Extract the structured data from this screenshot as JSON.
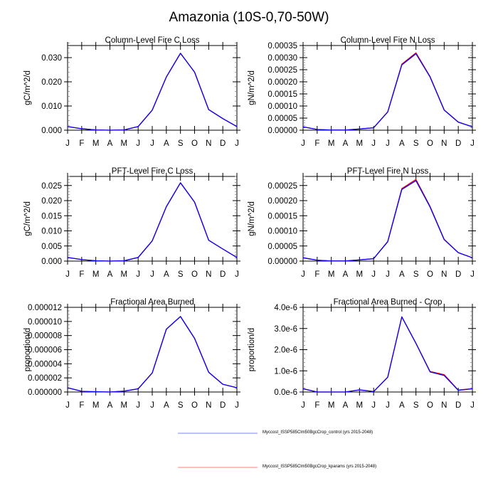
{
  "figure_title": "Amazonia (10S-0,70-50W)",
  "colors": {
    "control": "#0000ff",
    "kparams": "#ff0000",
    "axis": "#000000",
    "minor_tick": "#888888"
  },
  "legend": [
    {
      "label": "Myccost_ISSP585Clm50BgcCrop_control (yrs 2015-2048)",
      "color": "#7f7fff",
      "series": "control"
    },
    {
      "label": "Myccost_ISSP585Clm50BgcCrop_kparams (yrs 2015-2048)",
      "color": "#ff7f7f",
      "series": "kparams"
    }
  ],
  "chart_data": [
    {
      "type": "line",
      "title": "Column-Level Fire C Loss",
      "xlabel": "",
      "ylabel": "gC/m^2/d",
      "categories": [
        "J",
        "F",
        "M",
        "A",
        "M",
        "J",
        "J",
        "A",
        "S",
        "O",
        "N",
        "D",
        "J"
      ],
      "ylim": [
        0,
        0.035
      ],
      "yticks": [
        0,
        0.01,
        0.02,
        0.03
      ],
      "ytick_labels": [
        "0.000",
        "0.010",
        "0.020",
        "0.030"
      ],
      "yminor": 0.002,
      "series": [
        {
          "name": "control",
          "values": [
            0.0015,
            0.0006,
            0.0001,
            0.0,
            0.0001,
            0.0015,
            0.0083,
            0.022,
            0.0318,
            0.024,
            0.0085,
            0.0048,
            0.0015
          ]
        },
        {
          "name": "kparams",
          "values": [
            0.0015,
            0.0006,
            0.0001,
            0.0,
            0.0001,
            0.0015,
            0.0083,
            0.022,
            0.0318,
            0.024,
            0.0085,
            0.0048,
            0.0015
          ]
        }
      ]
    },
    {
      "type": "line",
      "title": "Column-Level Fire N Loss",
      "xlabel": "",
      "ylabel": "gN/m^2/d",
      "categories": [
        "J",
        "F",
        "M",
        "A",
        "M",
        "J",
        "J",
        "A",
        "S",
        "O",
        "N",
        "D",
        "J"
      ],
      "ylim": [
        0,
        0.00035
      ],
      "yticks": [
        0,
        5e-05,
        0.0001,
        0.00015,
        0.0002,
        0.00025,
        0.0003,
        0.00035
      ],
      "ytick_labels": [
        "0.00000",
        "0.00005",
        "0.00010",
        "0.00015",
        "0.00020",
        "0.00025",
        "0.00030",
        "0.00035"
      ],
      "yminor": 1e-05,
      "series": [
        {
          "name": "control",
          "values": [
            1.4e-05,
            3e-06,
            5e-07,
            5e-07,
            5e-06,
            1e-05,
            7.5e-05,
            0.00027,
            0.000316,
            0.00022,
            8.3e-05,
            3.3e-05,
            1.4e-05
          ]
        },
        {
          "name": "kparams",
          "values": [
            1.4e-05,
            3e-06,
            5e-07,
            5e-07,
            5e-06,
            1e-05,
            7.6e-05,
            0.000273,
            0.00032,
            0.000222,
            8.4e-05,
            3.4e-05,
            1.4e-05
          ]
        }
      ]
    },
    {
      "type": "line",
      "title": "PFT-Level Fire C Loss",
      "xlabel": "",
      "ylabel": "gC/m^2/d",
      "categories": [
        "J",
        "F",
        "M",
        "A",
        "M",
        "J",
        "J",
        "A",
        "S",
        "O",
        "N",
        "D",
        "J"
      ],
      "ylim": [
        0,
        0.028
      ],
      "yticks": [
        0,
        0.005,
        0.01,
        0.015,
        0.02,
        0.025
      ],
      "ytick_labels": [
        "0.000",
        "0.005",
        "0.010",
        "0.015",
        "0.020",
        "0.025"
      ],
      "yminor": 0.001,
      "series": [
        {
          "name": "control",
          "values": [
            0.0012,
            0.0005,
            0.0001,
            0.0,
            0.0001,
            0.0012,
            0.0067,
            0.018,
            0.0259,
            0.0195,
            0.0069,
            0.004,
            0.0012
          ]
        },
        {
          "name": "kparams",
          "values": [
            0.0012,
            0.0005,
            0.0001,
            0.0,
            0.0001,
            0.0012,
            0.0067,
            0.018,
            0.0259,
            0.0195,
            0.0069,
            0.004,
            0.0012
          ]
        }
      ]
    },
    {
      "type": "line",
      "title": "PFT-Level Fire N Loss",
      "xlabel": "",
      "ylabel": "gN/m^2/d",
      "categories": [
        "J",
        "F",
        "M",
        "A",
        "M",
        "J",
        "J",
        "A",
        "S",
        "O",
        "N",
        "D",
        "J"
      ],
      "ylim": [
        0,
        0.00028
      ],
      "yticks": [
        0,
        5e-05,
        0.0001,
        0.00015,
        0.0002,
        0.00025
      ],
      "ytick_labels": [
        "0.00000",
        "0.00005",
        "0.00010",
        "0.00015",
        "0.00020",
        "0.00025"
      ],
      "yminor": 1e-05,
      "series": [
        {
          "name": "control",
          "values": [
            1.1e-05,
            3e-06,
            5e-07,
            5e-07,
            4e-06,
            8e-06,
            6.4e-05,
            0.000237,
            0.000266,
            0.000179,
            7.1e-05,
            2.8e-05,
            1.1e-05
          ]
        },
        {
          "name": "kparams",
          "values": [
            1.1e-05,
            3e-06,
            5e-07,
            5e-07,
            4e-06,
            8e-06,
            6.5e-05,
            0.00024,
            0.00027,
            0.000181,
            7.2e-05,
            2.8e-05,
            1.1e-05
          ]
        }
      ]
    },
    {
      "type": "line",
      "title": "Fractional Area Burned",
      "xlabel": "",
      "ylabel": "proportion/d",
      "categories": [
        "J",
        "F",
        "M",
        "A",
        "M",
        "J",
        "J",
        "A",
        "S",
        "O",
        "N",
        "D",
        "J"
      ],
      "ylim": [
        0,
        1.2e-05
      ],
      "yticks": [
        0,
        2e-06,
        4e-06,
        6e-06,
        8e-06,
        1e-05,
        1.2e-05
      ],
      "ytick_labels": [
        "0.000000",
        "0.000002",
        "0.000004",
        "0.000006",
        "0.000008",
        "0.000010",
        "0.000012"
      ],
      "yminor": 5e-07,
      "series": [
        {
          "name": "control",
          "values": [
            6e-07,
            1e-07,
            3e-08,
            0.0,
            1.2e-07,
            4.5e-07,
            2.7e-06,
            8.9e-06,
            1.07e-05,
            7.6e-06,
            2.8e-06,
            1.1e-06,
            6e-07
          ]
        },
        {
          "name": "kparams",
          "values": [
            6e-07,
            1e-07,
            3e-08,
            0.0,
            1.2e-07,
            4.5e-07,
            2.7e-06,
            8.9e-06,
            1.07e-05,
            7.6e-06,
            2.8e-06,
            1.1e-06,
            6e-07
          ]
        }
      ]
    },
    {
      "type": "line",
      "title": "Fractional Area Burned - Crop",
      "xlabel": "",
      "ylabel": "proportion/d",
      "categories": [
        "J",
        "F",
        "M",
        "A",
        "M",
        "J",
        "J",
        "A",
        "S",
        "O",
        "N",
        "D",
        "J"
      ],
      "ylim": [
        0,
        4e-06
      ],
      "yticks": [
        0,
        1e-06,
        2e-06,
        3e-06,
        4e-06
      ],
      "ytick_labels": [
        "0.0e-6",
        "1.0e-6",
        "2.0e-6",
        "3.0e-6",
        "4.0e-6"
      ],
      "yminor": 2e-07,
      "series": [
        {
          "name": "control",
          "values": [
            1.5e-07,
            0.0,
            0.0,
            0.0,
            1e-07,
            2e-08,
            7e-07,
            3.55e-06,
            2.3e-06,
            9.5e-07,
            7.8e-07,
            8e-08,
            1.5e-07
          ]
        },
        {
          "name": "kparams",
          "values": [
            1.6e-07,
            0.0,
            0.0,
            0.0,
            1e-07,
            2e-08,
            7e-07,
            3.55e-06,
            2.3e-06,
            9.7e-07,
            8.2e-07,
            9e-08,
            1.6e-07
          ]
        }
      ]
    }
  ]
}
